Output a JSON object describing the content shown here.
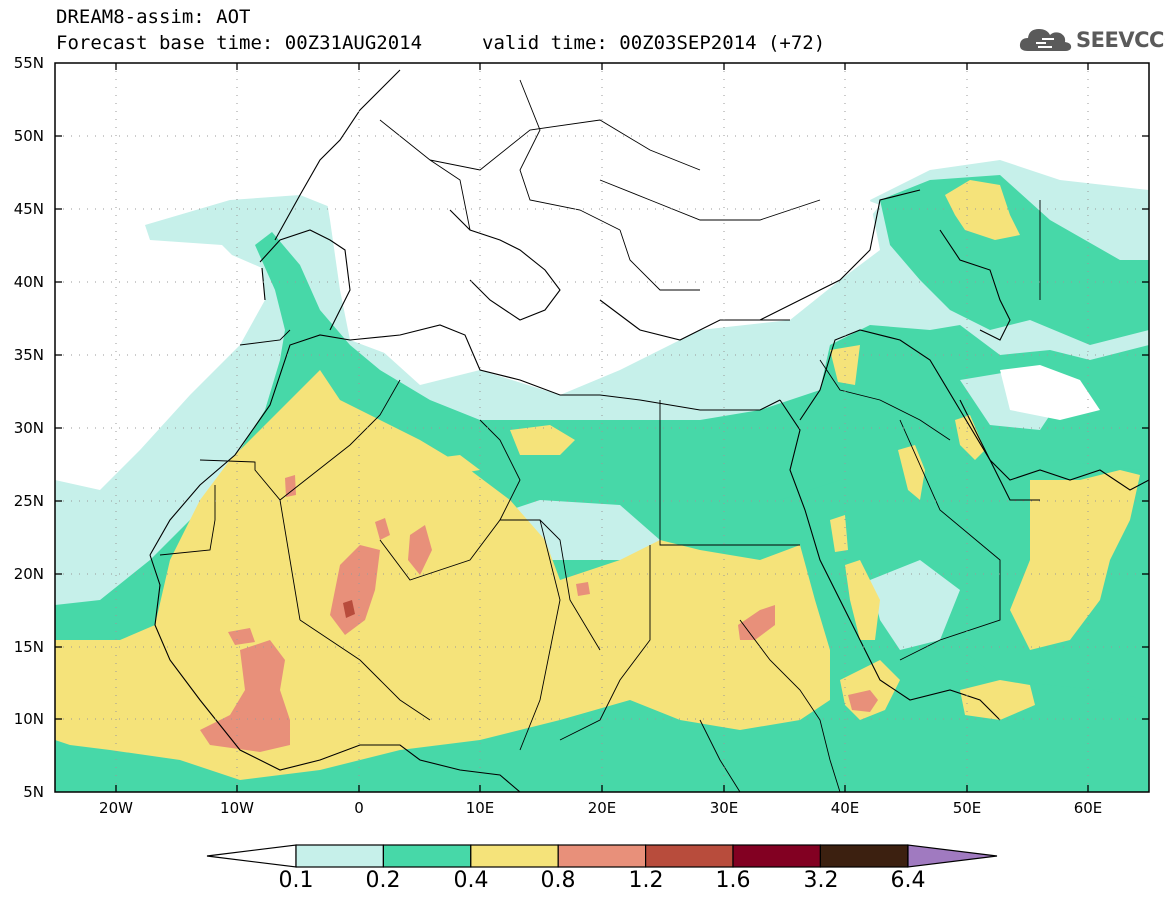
{
  "title": {
    "line1": "DREAM8-assim: AOT",
    "line2_base": "Forecast base time: 00Z31AUG2014",
    "line2_valid": "valid time: 00Z03SEP2014 (+72)"
  },
  "logo": {
    "text": "SEEVCCC",
    "icon": "cloud-icon"
  },
  "map": {
    "lon_range": [
      -25,
      65
    ],
    "lat_range": [
      5,
      55
    ],
    "y_ticks": [
      "55N",
      "50N",
      "45N",
      "40N",
      "35N",
      "30N",
      "25N",
      "20N",
      "15N",
      "10N",
      "5N"
    ],
    "x_ticks": [
      "20W",
      "10W",
      "0",
      "10E",
      "20E",
      "30E",
      "40E",
      "50E",
      "60E"
    ],
    "colors": {
      "c01": "#c6f0ea",
      "c02": "#47d8a8",
      "c04": "#f5e37a",
      "c08": "#e8907a",
      "c12": "#b84c3c",
      "c16": "#820022",
      "c32": "#3c2010",
      "c64": "#a07ac0"
    }
  },
  "colorbar": {
    "levels": [
      "0.1",
      "0.2",
      "0.4",
      "0.8",
      "1.2",
      "1.6",
      "3.2",
      "6.4"
    ],
    "colors": [
      "#c6f0ea",
      "#47d8a8",
      "#f5e37a",
      "#e8907a",
      "#b84c3c",
      "#820022",
      "#3c2010"
    ],
    "under_color": "#ffffff",
    "over_color": "#a07ac0"
  }
}
